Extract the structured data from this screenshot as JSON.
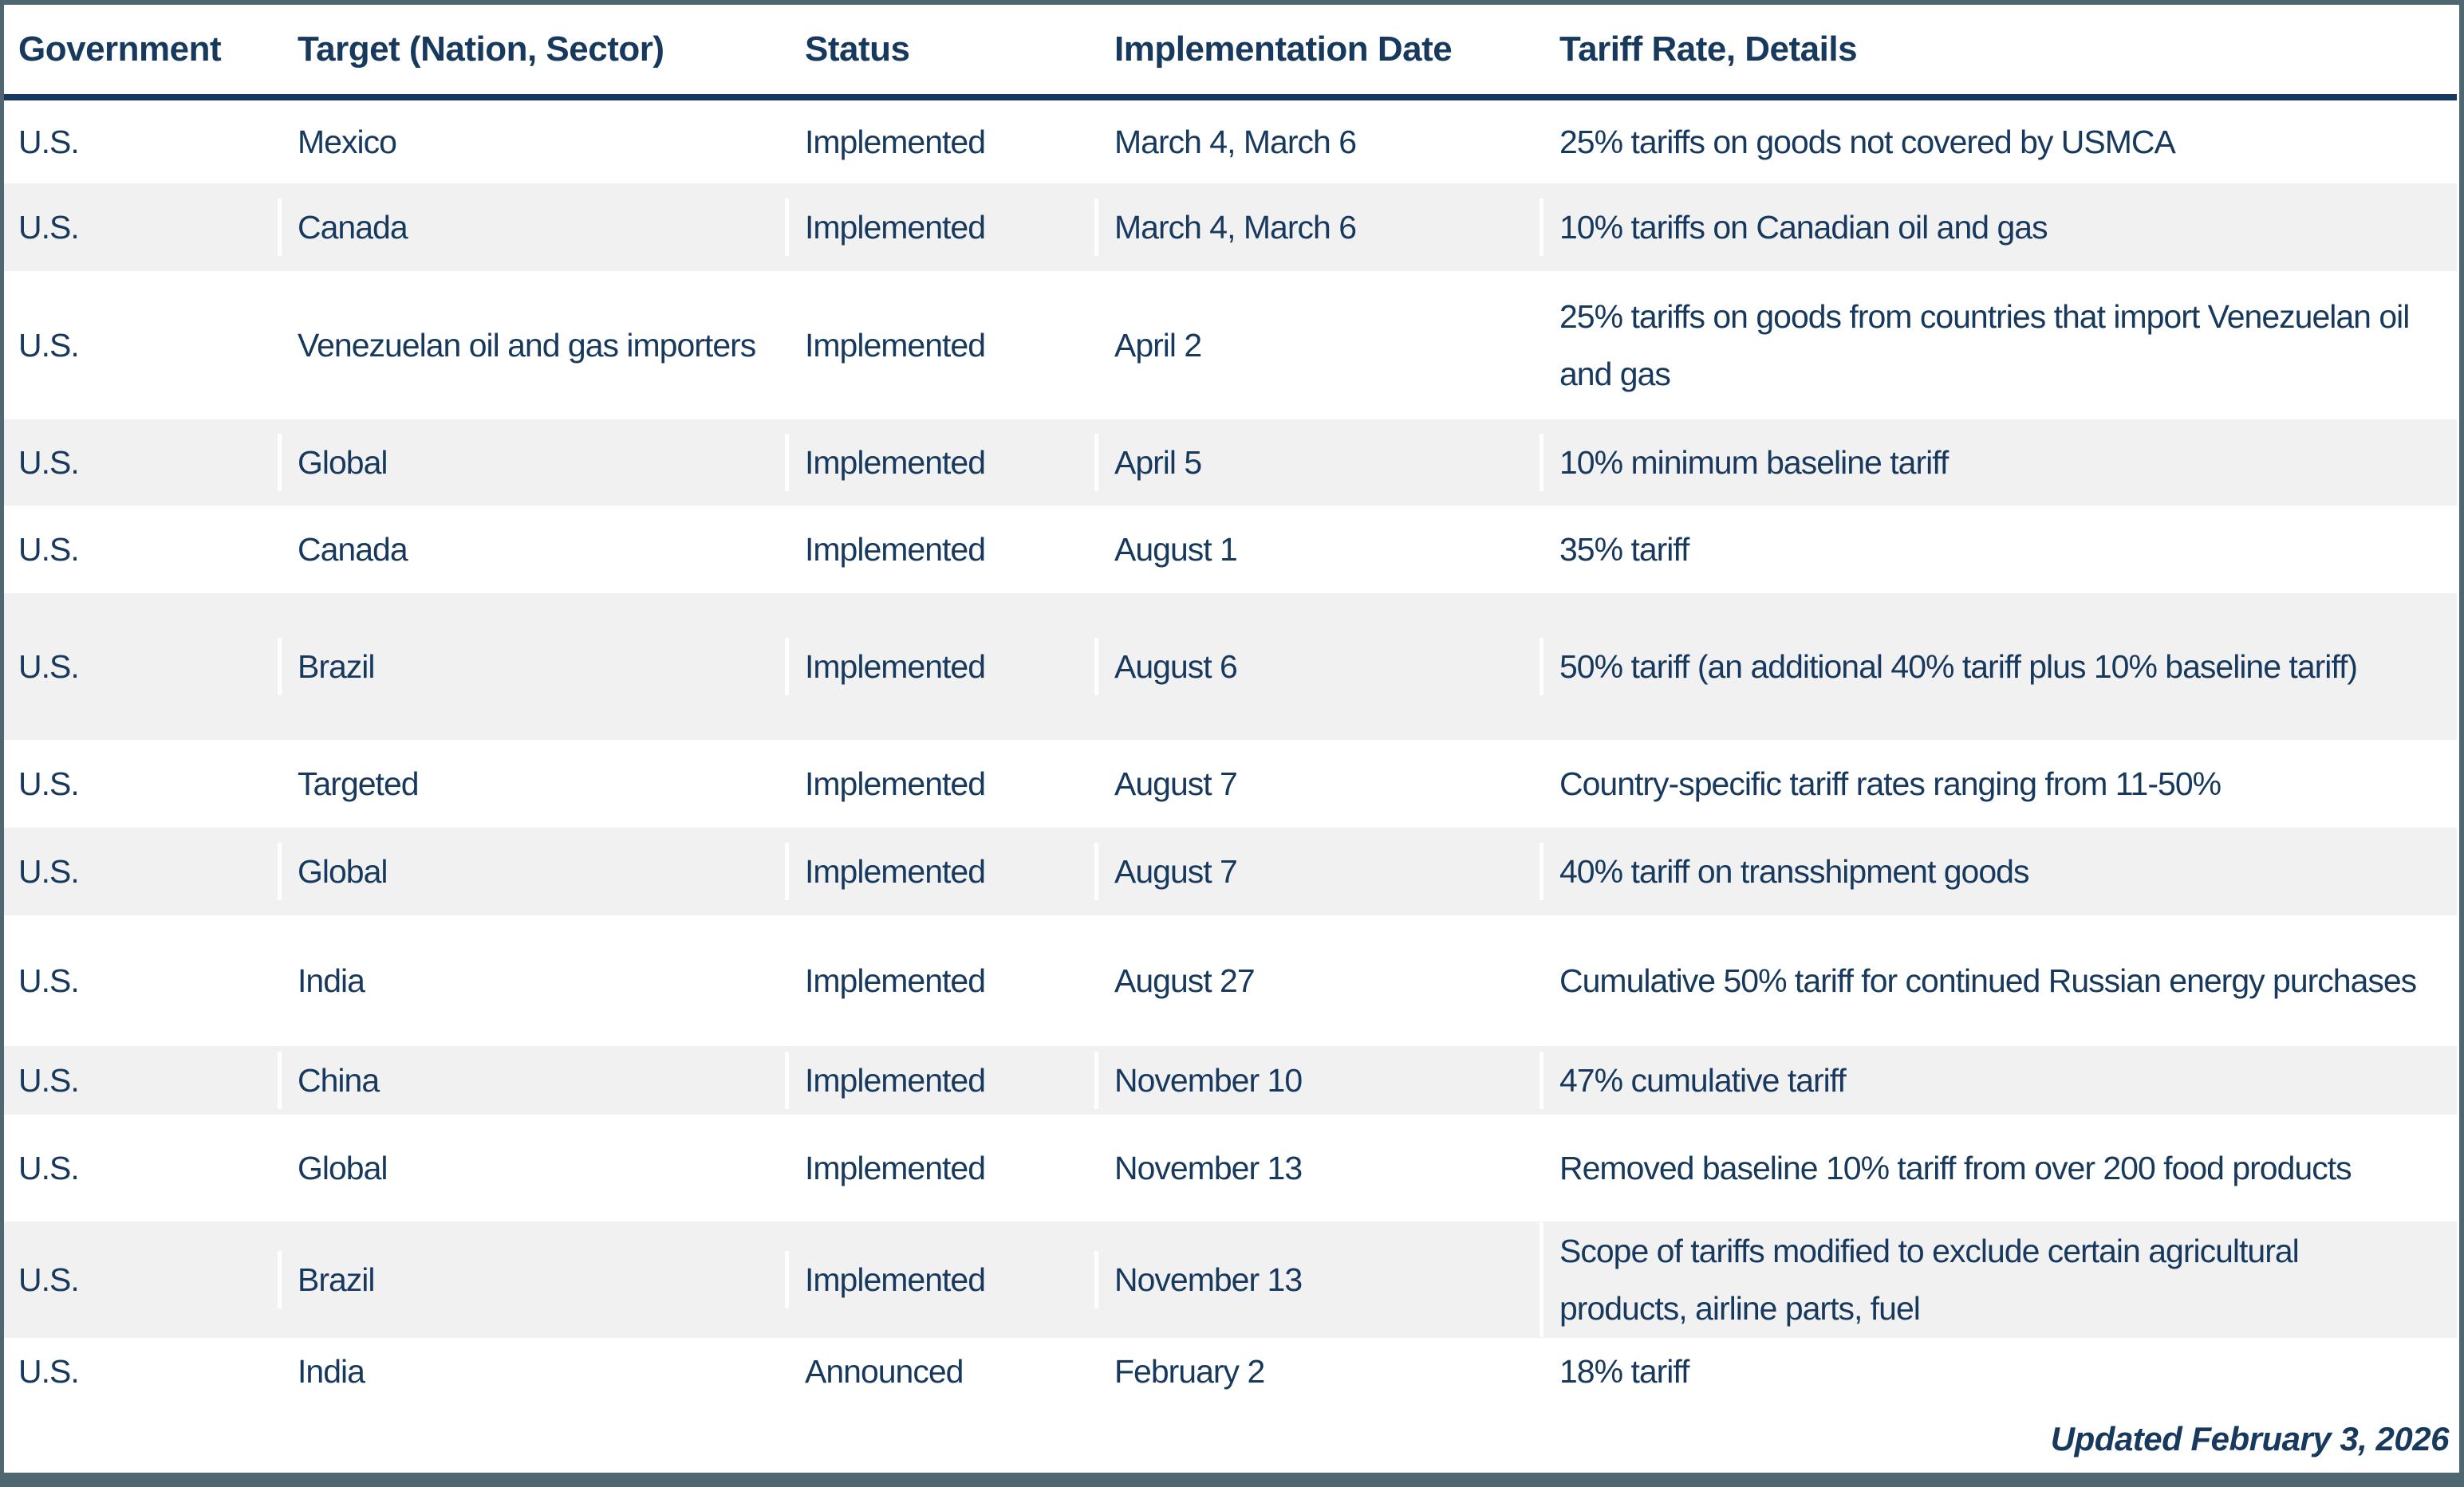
{
  "colors": {
    "navy_text": "#17395E",
    "slate_border": "#4E6770",
    "stripe_gray": "#F1F1F2"
  },
  "table": {
    "columns": [
      {
        "key": "government",
        "label": "Government"
      },
      {
        "key": "target",
        "label": "Target (Nation, Sector)"
      },
      {
        "key": "status",
        "label": "Status"
      },
      {
        "key": "date",
        "label": "Implementation Date"
      },
      {
        "key": "details",
        "label": "Tariff Rate, Details"
      }
    ],
    "rows": [
      {
        "government": "U.S.",
        "target": "Mexico",
        "status": "Implemented",
        "date": "March 4, March 6",
        "details": "25% tariffs on goods not covered by USMCA"
      },
      {
        "government": "U.S.",
        "target": "Canada",
        "status": "Implemented",
        "date": "March 4, March 6",
        "details": "10% tariffs on Canadian oil and gas"
      },
      {
        "government": "U.S.",
        "target": "Venezuelan oil and gas importers",
        "status": "Implemented",
        "date": "April 2",
        "details": "25% tariffs on goods from countries that import Venezuelan oil and gas"
      },
      {
        "government": "U.S.",
        "target": "Global",
        "status": "Implemented",
        "date": "April 5",
        "details": "10% minimum baseline tariff"
      },
      {
        "government": "U.S.",
        "target": "Canada",
        "status": "Implemented",
        "date": "August 1",
        "details": "35% tariff"
      },
      {
        "government": "U.S.",
        "target": "Brazil",
        "status": "Implemented",
        "date": "August 6",
        "details": "50% tariff (an additional 40% tariff plus 10% baseline tariff)"
      },
      {
        "government": "U.S.",
        "target": "Targeted",
        "status": "Implemented",
        "date": "August 7",
        "details": "Country-specific tariff rates ranging from 11-50%"
      },
      {
        "government": "U.S.",
        "target": "Global",
        "status": "Implemented",
        "date": "August 7",
        "details": "40% tariff on transshipment goods"
      },
      {
        "government": "U.S.",
        "target": "India",
        "status": "Implemented",
        "date": "August 27",
        "details": "Cumulative 50% tariff for continued Russian energy purchases"
      },
      {
        "government": "U.S.",
        "target": "China",
        "status": "Implemented",
        "date": "November 10",
        "details": "47% cumulative tariff"
      },
      {
        "government": "U.S.",
        "target": "Global",
        "status": "Implemented",
        "date": "November 13",
        "details": "Removed baseline 10% tariff from over 200 food products"
      },
      {
        "government": "U.S.",
        "target": "Brazil",
        "status": "Implemented",
        "date": "November 13",
        "details": "Scope of tariffs modified to exclude certain agricultural products, airline parts, fuel"
      },
      {
        "government": "U.S.",
        "target": "India",
        "status": "Announced",
        "date": "February 2",
        "details": "18% tariff"
      }
    ]
  },
  "footer": {
    "updated": "Updated February 3, 2026"
  }
}
